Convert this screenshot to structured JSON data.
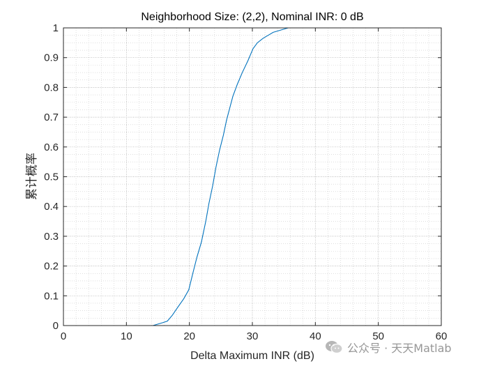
{
  "chart_data": {
    "type": "line",
    "title": "Neighborhood Size: (2,2), Nominal INR: 0 dB",
    "xlabel": "Delta Maximum INR (dB)",
    "ylabel": "累计概率",
    "xlim": [
      0,
      60
    ],
    "ylim": [
      0,
      1
    ],
    "xticks": [
      "0",
      "10",
      "20",
      "30",
      "40",
      "50",
      "60"
    ],
    "yticks": [
      "0",
      "0.1",
      "0.2",
      "0.3",
      "0.4",
      "0.5",
      "0.6",
      "0.7",
      "0.8",
      "0.9",
      "1"
    ],
    "grid": true,
    "minor_grid": true,
    "line_color": "#0072BD",
    "series": [
      {
        "x": [
          14.2,
          15.0,
          15.8,
          16.5,
          17.3,
          18.1,
          19.1,
          19.9,
          20.6,
          21.2,
          21.9,
          22.6,
          23.1,
          23.7,
          24.2,
          24.8,
          25.4,
          25.9,
          26.4,
          26.9,
          27.6,
          28.4,
          29.3,
          29.7,
          30.1,
          30.8,
          31.7,
          32.5,
          33.3,
          34.1,
          35.2,
          35.7
        ],
        "y": [
          0.0,
          0.005,
          0.01,
          0.015,
          0.035,
          0.06,
          0.09,
          0.12,
          0.18,
          0.23,
          0.28,
          0.35,
          0.41,
          0.47,
          0.53,
          0.59,
          0.64,
          0.69,
          0.73,
          0.77,
          0.81,
          0.85,
          0.89,
          0.91,
          0.93,
          0.95,
          0.965,
          0.975,
          0.985,
          0.99,
          0.997,
          1.0
        ]
      }
    ]
  },
  "watermark": {
    "text": "公众号 · 天天Matlab",
    "icon": "wechat-icon"
  }
}
